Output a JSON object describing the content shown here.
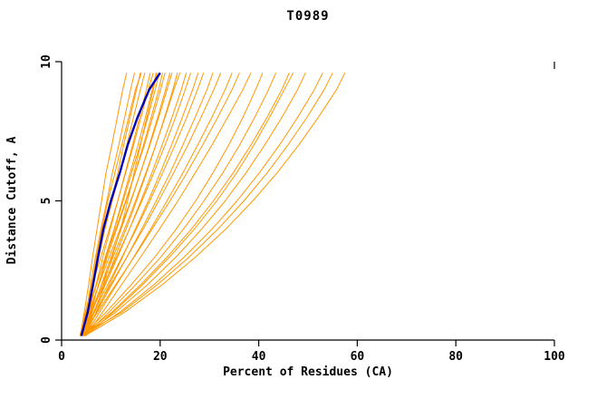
{
  "page": {
    "background": "#ffffff"
  },
  "chart_data": {
    "type": "line",
    "title": "T0989",
    "xlabel": "Percent of Residues (CA)",
    "ylabel": "Distance Cutoff, A",
    "xlim": [
      0,
      100
    ],
    "ylim": [
      0,
      10
    ],
    "xticks": [
      0,
      20,
      40,
      60,
      80,
      100
    ],
    "yticks": [
      0,
      5,
      10
    ],
    "grid": false,
    "legend": "none",
    "colors": {
      "orange": "#ff9800",
      "blue": "#0000bb",
      "axis": "#000000"
    },
    "y_samples": [
      0.15,
      1,
      2,
      3,
      4,
      5,
      6,
      7,
      8,
      9,
      9.6
    ],
    "series": [
      {
        "color": "orange",
        "x": [
          3.8,
          4.6,
          5.5,
          6.3,
          7.2,
          8.1,
          9.0,
          10.2,
          11.3,
          12.4,
          13.2
        ]
      },
      {
        "color": "orange",
        "x": [
          4.2,
          5.0,
          5.9,
          6.9,
          8.0,
          9.2,
          10.3,
          11.6,
          12.8,
          14.0,
          14.8
        ]
      },
      {
        "color": "orange",
        "x": [
          4.6,
          5.5,
          6.5,
          7.6,
          8.8,
          10.1,
          11.4,
          12.6,
          13.9,
          15.2,
          16.0
        ]
      },
      {
        "color": "orange",
        "x": [
          3.9,
          4.9,
          6.1,
          7.4,
          8.8,
          10.3,
          11.8,
          13.2,
          14.6,
          16.0,
          16.9
        ]
      },
      {
        "color": "orange",
        "x": [
          4.4,
          5.6,
          7.0,
          8.4,
          9.9,
          11.4,
          12.9,
          14.4,
          15.8,
          17.2,
          18.0
        ]
      },
      {
        "color": "orange",
        "x": [
          3.7,
          4.8,
          6.3,
          8.0,
          9.7,
          11.4,
          13.0,
          14.6,
          16.1,
          17.6,
          18.6
        ]
      },
      {
        "color": "orange",
        "x": [
          4.8,
          6.0,
          7.5,
          9.1,
          10.7,
          12.3,
          13.9,
          15.5,
          17.0,
          18.4,
          19.2
        ]
      },
      {
        "color": "orange",
        "x": [
          4.1,
          5.4,
          7.1,
          8.9,
          10.7,
          12.5,
          14.2,
          15.9,
          17.5,
          19.0,
          19.8
        ]
      },
      {
        "color": "orange",
        "x": [
          4.5,
          5.8,
          7.5,
          9.3,
          11.2,
          13.1,
          14.9,
          16.6,
          18.2,
          19.7,
          20.5
        ]
      },
      {
        "color": "orange",
        "x": [
          3.8,
          5.2,
          7.0,
          9.0,
          11.0,
          13.0,
          14.9,
          16.8,
          18.5,
          20.1,
          21.0
        ]
      },
      {
        "color": "orange",
        "x": [
          4.7,
          6.2,
          8.1,
          10.1,
          12.1,
          14.1,
          16.0,
          17.8,
          19.5,
          21.1,
          22.0
        ]
      },
      {
        "color": "orange",
        "x": [
          4.0,
          5.6,
          7.6,
          9.7,
          11.9,
          14.0,
          16.0,
          17.9,
          19.7,
          21.4,
          22.4
        ]
      },
      {
        "color": "orange",
        "x": [
          4.9,
          6.6,
          8.7,
          10.9,
          13.1,
          15.2,
          17.2,
          19.1,
          20.9,
          22.6,
          23.5
        ]
      },
      {
        "color": "orange",
        "x": [
          4.2,
          6.0,
          8.2,
          10.5,
          12.8,
          15.0,
          17.1,
          19.1,
          21.0,
          22.8,
          24.0
        ]
      },
      {
        "color": "orange",
        "x": [
          4.6,
          6.5,
          8.9,
          11.4,
          13.8,
          16.1,
          18.3,
          20.4,
          22.4,
          24.3,
          25.3
        ]
      },
      {
        "color": "orange",
        "x": [
          3.9,
          6.0,
          8.6,
          11.2,
          13.8,
          16.3,
          18.7,
          21.0,
          23.1,
          25.1,
          26.2
        ]
      },
      {
        "color": "orange",
        "x": [
          4.8,
          7.0,
          9.7,
          12.4,
          15.0,
          17.6,
          20.0,
          22.3,
          24.5,
          26.6,
          27.7
        ]
      },
      {
        "color": "orange",
        "x": [
          4.1,
          6.5,
          9.4,
          12.3,
          15.2,
          17.9,
          20.5,
          23.0,
          25.4,
          27.6,
          28.8
        ]
      },
      {
        "color": "orange",
        "x": [
          4.5,
          7.1,
          10.2,
          13.3,
          16.3,
          19.2,
          22.0,
          24.6,
          27.1,
          29.5,
          30.7
        ]
      },
      {
        "color": "orange",
        "x": [
          3.8,
          6.7,
          10.0,
          13.3,
          16.6,
          19.7,
          22.7,
          25.6,
          28.3,
          30.9,
          32.3
        ]
      },
      {
        "color": "orange",
        "x": [
          4.7,
          7.7,
          11.2,
          14.7,
          18.1,
          21.4,
          24.6,
          27.6,
          30.5,
          33.2,
          34.6
        ]
      },
      {
        "color": "orange",
        "x": [
          4.0,
          7.3,
          11.0,
          14.8,
          18.4,
          22.0,
          25.4,
          28.6,
          31.7,
          34.6,
          36.1
        ]
      },
      {
        "color": "orange",
        "x": [
          4.9,
          8.3,
          12.2,
          16.1,
          19.9,
          23.6,
          27.1,
          30.5,
          33.7,
          36.8,
          38.4
        ]
      },
      {
        "color": "orange",
        "x": [
          4.2,
          9.0,
          14.2,
          19.0,
          23.3,
          27.2,
          30.7,
          33.9,
          36.8,
          39.4,
          40.8
        ]
      },
      {
        "color": "orange",
        "x": [
          4.6,
          9.6,
          15.1,
          20.2,
          24.8,
          28.9,
          32.7,
          36.1,
          39.2,
          42.0,
          43.5
        ]
      },
      {
        "color": "orange",
        "x": [
          3.9,
          10.2,
          16.1,
          21.5,
          26.4,
          30.8,
          34.8,
          38.4,
          41.7,
          44.7,
          46.2
        ]
      },
      {
        "color": "orange",
        "x": [
          4.8,
          10.5,
          16.5,
          22.0,
          27.0,
          31.5,
          35.5,
          39.0,
          42.2,
          45.2,
          47.0
        ]
      },
      {
        "color": "orange",
        "x": [
          4.1,
          11.0,
          17.5,
          23.3,
          28.5,
          33.2,
          37.4,
          41.2,
          44.7,
          47.9,
          49.5
        ]
      },
      {
        "color": "orange",
        "x": [
          4.5,
          11.8,
          18.8,
          25.0,
          30.6,
          35.6,
          40.1,
          44.2,
          47.9,
          51.3,
          53.0
        ]
      },
      {
        "color": "orange",
        "x": [
          3.8,
          12.2,
          19.5,
          26.0,
          31.8,
          37.0,
          41.7,
          45.9,
          49.8,
          53.3,
          55.0
        ]
      },
      {
        "color": "orange",
        "x": [
          4.7,
          12.8,
          20.5,
          27.3,
          33.4,
          38.8,
          43.7,
          48.1,
          52.1,
          55.8,
          57.5
        ]
      },
      {
        "color": "orange",
        "x": [
          4.3,
          6.1,
          8.5,
          10.3,
          12.0,
          13.4,
          14.7,
          16.0,
          17.3,
          18.6,
          19.4
        ]
      },
      {
        "color": "orange",
        "x": [
          4.4,
          5.3,
          6.2,
          7.1,
          8.2,
          9.4,
          10.8,
          12.2,
          13.6,
          15.0,
          16.2
        ]
      },
      {
        "color": "blue",
        "x": [
          4.0,
          5.3,
          6.4,
          7.4,
          8.5,
          10.0,
          11.8,
          13.4,
          15.4,
          17.8,
          20.0
        ]
      }
    ]
  }
}
